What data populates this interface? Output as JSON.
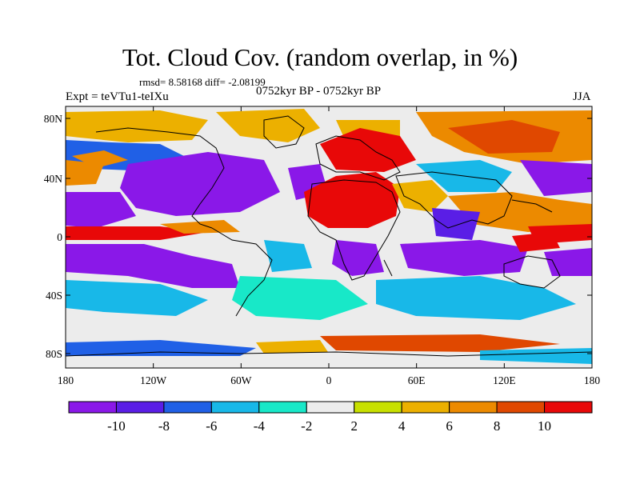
{
  "header": {
    "title": "Tot. Cloud Cov. (random overlap, in %)",
    "stats": "rmsd= 8.58168 diff= -2.08199",
    "left_label": "Expt = teVTu1-teIXu",
    "center_label": "0752kyr BP - 0752kyr BP",
    "right_label": "JJA"
  },
  "axes": {
    "lat_ticks": [
      "80N",
      "40N",
      "0",
      "40S",
      "80S"
    ],
    "lon_ticks": [
      "180",
      "120W",
      "60W",
      "0",
      "60E",
      "120E",
      "180"
    ]
  },
  "colorbar": {
    "labels": [
      "-10",
      "-8",
      "-6",
      "-4",
      "-2",
      "2",
      "4",
      "6",
      "8",
      "10"
    ],
    "colors": [
      "#8a18e8",
      "#5a1ee6",
      "#2060e6",
      "#18b8e8",
      "#18e8c8",
      "#ececec",
      "#c8e000",
      "#ecb000",
      "#ec8a00",
      "#e04800",
      "#e80808"
    ]
  },
  "palette": {
    "background_gray": "#ececec",
    "coastline": "#000000"
  }
}
